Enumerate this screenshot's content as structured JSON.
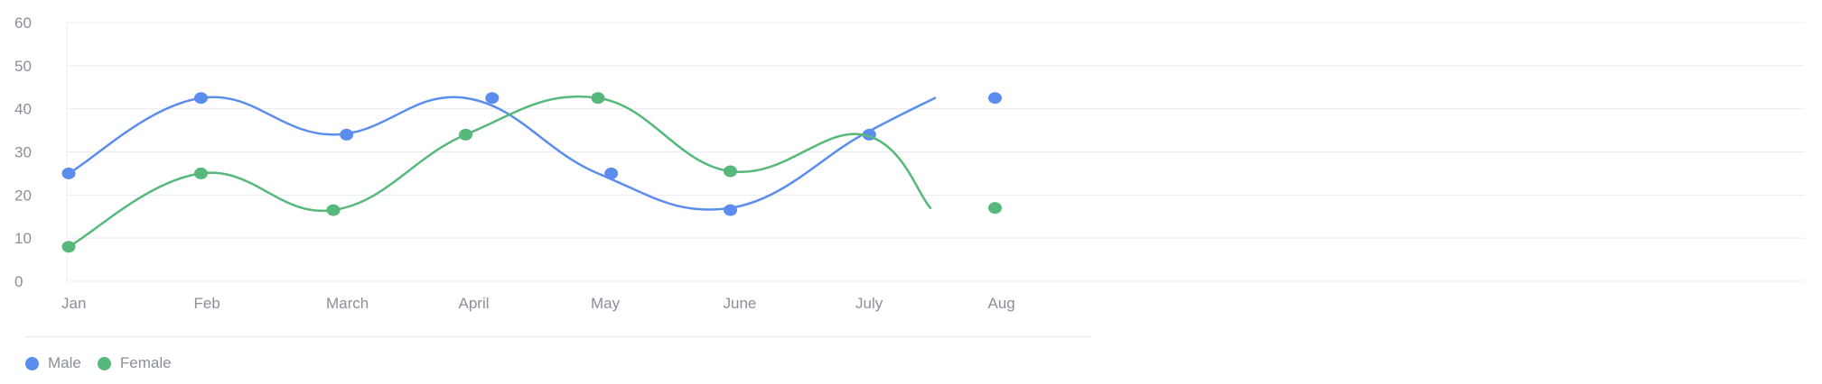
{
  "chart_data": {
    "type": "line",
    "categories": [
      "Jan",
      "Feb",
      "March",
      "April",
      "May",
      "June",
      "July",
      "Aug"
    ],
    "ylim": [
      0,
      60
    ],
    "yticks": [
      0,
      10,
      20,
      30,
      40,
      50,
      60
    ],
    "grid": true,
    "legend_position": "bottom-left",
    "series": [
      {
        "name": "Male",
        "color": "#5b8def",
        "line_values": [
          25,
          42.5,
          34,
          42.5,
          25,
          17,
          34,
          42.5
        ],
        "points": [
          {
            "x": 0.0,
            "y": 25
          },
          {
            "x": 1.0,
            "y": 42.5
          },
          {
            "x": 2.1,
            "y": 34
          },
          {
            "x": 3.2,
            "y": 42.5
          },
          {
            "x": 4.1,
            "y": 25
          },
          {
            "x": 5.0,
            "y": 16.5
          },
          {
            "x": 6.05,
            "y": 34
          },
          {
            "x": 7.0,
            "y": 42.5
          }
        ]
      },
      {
        "name": "Female",
        "color": "#56b87a",
        "line_values": [
          8,
          25,
          16.5,
          34,
          42.5,
          25.5,
          34,
          17
        ],
        "points": [
          {
            "x": 0.0,
            "y": 8
          },
          {
            "x": 1.0,
            "y": 25
          },
          {
            "x": 2.0,
            "y": 16.5
          },
          {
            "x": 3.0,
            "y": 34
          },
          {
            "x": 4.0,
            "y": 42.5
          },
          {
            "x": 5.0,
            "y": 25.5
          },
          {
            "x": 7.0,
            "y": 17
          }
        ]
      }
    ]
  }
}
